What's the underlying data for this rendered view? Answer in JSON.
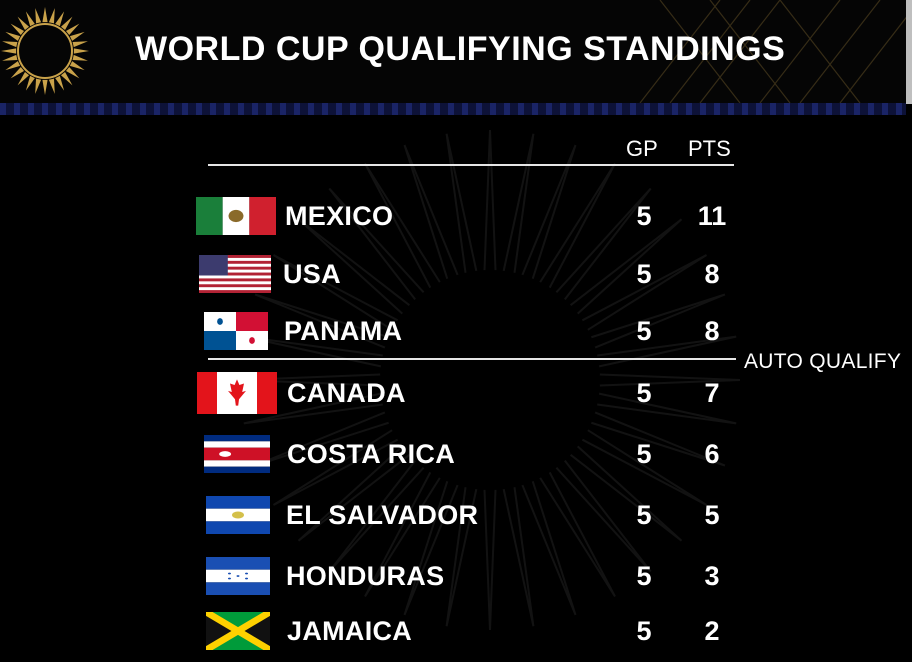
{
  "header": {
    "title": "WORLD CUP QUALIFYING STANDINGS"
  },
  "columns": {
    "gp": "GP",
    "pts": "PTS"
  },
  "qualify_label": "AUTO QUALIFY",
  "colors": {
    "background": "#000000",
    "band": "#121a4a",
    "text": "#ffffff",
    "logo_gold": "#c9a24a"
  },
  "teams": [
    {
      "name": "MEXICO",
      "gp": "5",
      "pts": "11",
      "flag_icon": "mexico-flag-icon"
    },
    {
      "name": "USA",
      "gp": "5",
      "pts": "8",
      "flag_icon": "usa-flag-icon"
    },
    {
      "name": "PANAMA",
      "gp": "5",
      "pts": "8",
      "flag_icon": "panama-flag-icon"
    },
    {
      "name": "CANADA",
      "gp": "5",
      "pts": "7",
      "flag_icon": "canada-flag-icon"
    },
    {
      "name": "COSTA RICA",
      "gp": "5",
      "pts": "6",
      "flag_icon": "costa-rica-flag-icon"
    },
    {
      "name": "EL SALVADOR",
      "gp": "5",
      "pts": "5",
      "flag_icon": "el-salvador-flag-icon"
    },
    {
      "name": "HONDURAS",
      "gp": "5",
      "pts": "3",
      "flag_icon": "honduras-flag-icon"
    },
    {
      "name": "JAMAICA",
      "gp": "5",
      "pts": "2",
      "flag_icon": "jamaica-flag-icon"
    }
  ]
}
